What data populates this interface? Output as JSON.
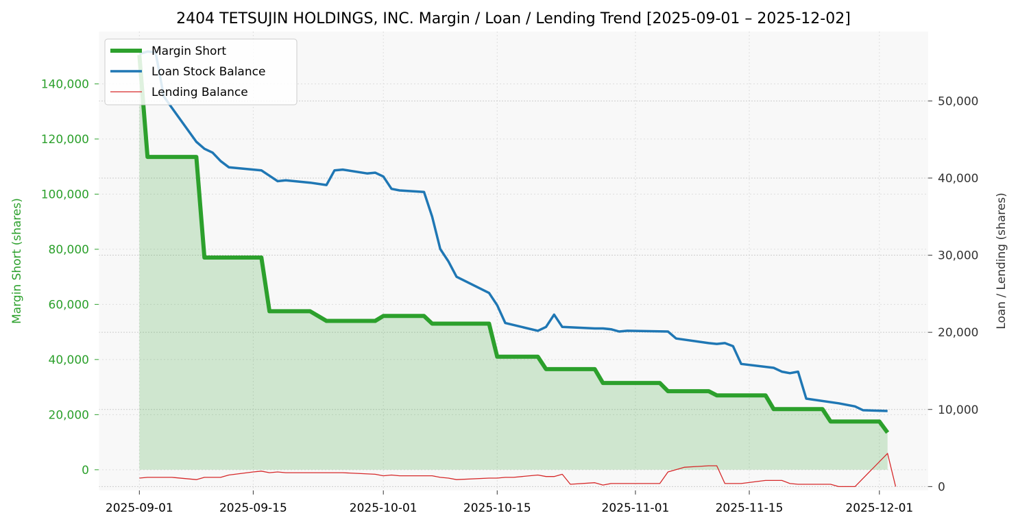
{
  "chart_data": {
    "type": "line",
    "title": "2404 TETSUJIN HOLDINGS, INC. Margin / Loan / Lending Trend [2025-09-01 – 2025-12-02]",
    "x_axis": {
      "type": "date",
      "range": [
        "2025-08-27",
        "2025-12-07"
      ],
      "ticks": [
        "2025-09-01",
        "2025-09-15",
        "2025-10-01",
        "2025-10-15",
        "2025-11-01",
        "2025-11-15",
        "2025-12-01"
      ]
    },
    "y_left": {
      "label": "Margin Short (shares)",
      "range": [
        -7500,
        159000
      ],
      "ticks": [
        0,
        20000,
        40000,
        60000,
        80000,
        100000,
        120000,
        140000
      ],
      "tick_labels": [
        "0",
        "20,000",
        "40,000",
        "60,000",
        "80,000",
        "100,000",
        "120,000",
        "140,000"
      ],
      "color": "#2ca02c"
    },
    "y_right": {
      "label": "Loan / Lending (shares)",
      "range": [
        -500,
        59000
      ],
      "ticks": [
        0,
        10000,
        20000,
        30000,
        40000,
        50000
      ],
      "tick_labels": [
        "0",
        "10,000",
        "20,000",
        "30,000",
        "40,000",
        "50,000"
      ],
      "color": "#333333"
    },
    "grid": true,
    "legend_position": "top-left",
    "series": [
      {
        "name": "Margin Short",
        "axis": "left",
        "color": "#2ca02c",
        "fill": true,
        "points": [
          [
            "2025-09-01",
            150500
          ],
          [
            "2025-09-02",
            113500
          ],
          [
            "2025-09-08",
            113500
          ],
          [
            "2025-09-09",
            77000
          ],
          [
            "2025-09-16",
            77000
          ],
          [
            "2025-09-17",
            57500
          ],
          [
            "2025-09-22",
            57500
          ],
          [
            "2025-09-24",
            54000
          ],
          [
            "2025-09-30",
            54000
          ],
          [
            "2025-10-01",
            55800
          ],
          [
            "2025-10-06",
            55800
          ],
          [
            "2025-10-07",
            53000
          ],
          [
            "2025-10-14",
            53000
          ],
          [
            "2025-10-15",
            41000
          ],
          [
            "2025-10-20",
            41000
          ],
          [
            "2025-10-21",
            36500
          ],
          [
            "2025-10-27",
            36500
          ],
          [
            "2025-10-28",
            31500
          ],
          [
            "2025-11-04",
            31500
          ],
          [
            "2025-11-05",
            28500
          ],
          [
            "2025-11-10",
            28500
          ],
          [
            "2025-11-11",
            27000
          ],
          [
            "2025-11-17",
            27000
          ],
          [
            "2025-11-18",
            22000
          ],
          [
            "2025-11-24",
            22000
          ],
          [
            "2025-11-25",
            17500
          ],
          [
            "2025-12-01",
            17500
          ],
          [
            "2025-12-02",
            13500
          ]
        ]
      },
      {
        "name": "Loan Stock Balance",
        "axis": "right",
        "color": "#1f77b4",
        "fill": false,
        "points": [
          [
            "2025-09-01",
            56100
          ],
          [
            "2025-09-02",
            56400
          ],
          [
            "2025-09-03",
            56300
          ],
          [
            "2025-09-04",
            50600
          ],
          [
            "2025-09-05",
            49100
          ],
          [
            "2025-09-08",
            44700
          ],
          [
            "2025-09-09",
            43800
          ],
          [
            "2025-09-10",
            43300
          ],
          [
            "2025-09-11",
            42200
          ],
          [
            "2025-09-12",
            41400
          ],
          [
            "2025-09-16",
            41000
          ],
          [
            "2025-09-17",
            40300
          ],
          [
            "2025-09-18",
            39600
          ],
          [
            "2025-09-19",
            39700
          ],
          [
            "2025-09-22",
            39400
          ],
          [
            "2025-09-24",
            39100
          ],
          [
            "2025-09-25",
            41000
          ],
          [
            "2025-09-26",
            41100
          ],
          [
            "2025-09-29",
            40600
          ],
          [
            "2025-09-30",
            40700
          ],
          [
            "2025-10-01",
            40200
          ],
          [
            "2025-10-02",
            38600
          ],
          [
            "2025-10-03",
            38400
          ],
          [
            "2025-10-06",
            38200
          ],
          [
            "2025-10-07",
            35000
          ],
          [
            "2025-10-08",
            30800
          ],
          [
            "2025-10-09",
            29200
          ],
          [
            "2025-10-10",
            27200
          ],
          [
            "2025-10-14",
            25100
          ],
          [
            "2025-10-15",
            23500
          ],
          [
            "2025-10-16",
            21200
          ],
          [
            "2025-10-20",
            20200
          ],
          [
            "2025-10-21",
            20700
          ],
          [
            "2025-10-22",
            22300
          ],
          [
            "2025-10-23",
            20700
          ],
          [
            "2025-10-27",
            20500
          ],
          [
            "2025-10-28",
            20500
          ],
          [
            "2025-10-29",
            20400
          ],
          [
            "2025-10-30",
            20100
          ],
          [
            "2025-10-31",
            20200
          ],
          [
            "2025-11-05",
            20100
          ],
          [
            "2025-11-06",
            19200
          ],
          [
            "2025-11-10",
            18600
          ],
          [
            "2025-11-11",
            18500
          ],
          [
            "2025-11-12",
            18600
          ],
          [
            "2025-11-13",
            18200
          ],
          [
            "2025-11-14",
            15900
          ],
          [
            "2025-11-18",
            15400
          ],
          [
            "2025-11-19",
            14900
          ],
          [
            "2025-11-20",
            14700
          ],
          [
            "2025-11-21",
            14900
          ],
          [
            "2025-11-22",
            11400
          ],
          [
            "2025-11-26",
            10800
          ],
          [
            "2025-11-28",
            10400
          ],
          [
            "2025-11-29",
            9900
          ],
          [
            "2025-12-02",
            9800
          ]
        ]
      },
      {
        "name": "Lending Balance",
        "axis": "right",
        "color": "#d62728",
        "fill": false,
        "points": [
          [
            "2025-09-01",
            1100
          ],
          [
            "2025-09-02",
            1200
          ],
          [
            "2025-09-05",
            1200
          ],
          [
            "2025-09-08",
            900
          ],
          [
            "2025-09-09",
            1200
          ],
          [
            "2025-09-11",
            1200
          ],
          [
            "2025-09-12",
            1500
          ],
          [
            "2025-09-15",
            1900
          ],
          [
            "2025-09-16",
            2000
          ],
          [
            "2025-09-17",
            1800
          ],
          [
            "2025-09-18",
            1900
          ],
          [
            "2025-09-19",
            1800
          ],
          [
            "2025-09-26",
            1800
          ],
          [
            "2025-09-30",
            1600
          ],
          [
            "2025-10-01",
            1400
          ],
          [
            "2025-10-02",
            1500
          ],
          [
            "2025-10-03",
            1400
          ],
          [
            "2025-10-07",
            1400
          ],
          [
            "2025-10-08",
            1200
          ],
          [
            "2025-10-09",
            1100
          ],
          [
            "2025-10-10",
            900
          ],
          [
            "2025-10-14",
            1100
          ],
          [
            "2025-10-15",
            1100
          ],
          [
            "2025-10-16",
            1200
          ],
          [
            "2025-10-17",
            1200
          ],
          [
            "2025-10-20",
            1500
          ],
          [
            "2025-10-21",
            1300
          ],
          [
            "2025-10-22",
            1300
          ],
          [
            "2025-10-23",
            1600
          ],
          [
            "2025-10-24",
            300
          ],
          [
            "2025-10-27",
            500
          ],
          [
            "2025-10-28",
            200
          ],
          [
            "2025-10-29",
            400
          ],
          [
            "2025-11-04",
            400
          ],
          [
            "2025-11-05",
            1900
          ],
          [
            "2025-11-06",
            2200
          ],
          [
            "2025-11-07",
            2500
          ],
          [
            "2025-11-10",
            2700
          ],
          [
            "2025-11-11",
            2700
          ],
          [
            "2025-11-12",
            400
          ],
          [
            "2025-11-14",
            400
          ],
          [
            "2025-11-17",
            800
          ],
          [
            "2025-11-18",
            800
          ],
          [
            "2025-11-19",
            800
          ],
          [
            "2025-11-20",
            400
          ],
          [
            "2025-11-21",
            300
          ],
          [
            "2025-11-25",
            300
          ],
          [
            "2025-11-26",
            0
          ],
          [
            "2025-11-28",
            0
          ],
          [
            "2025-12-02",
            4300
          ],
          [
            "2025-12-03",
            0
          ]
        ]
      }
    ]
  }
}
